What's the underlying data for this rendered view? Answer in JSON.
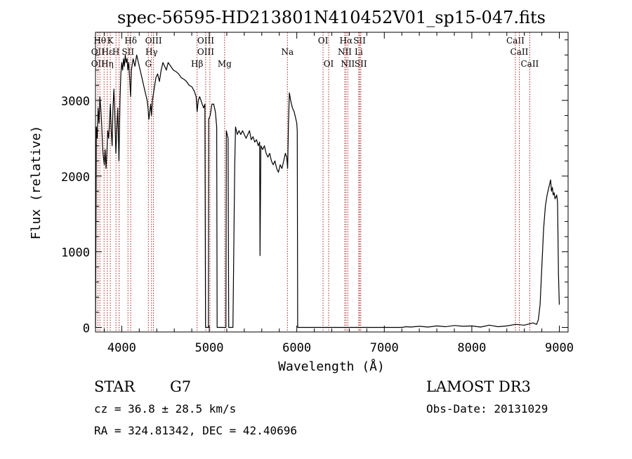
{
  "chart_data": {
    "type": "line",
    "title": "spec-56595-HD213801N410452V01_sp15-047.fits",
    "xlabel": "Wavelength (Å)",
    "ylabel": "Flux (relative)",
    "xlim": [
      3700,
      9100
    ],
    "ylim": [
      -60,
      3900
    ],
    "x_ticks": [
      4000,
      5000,
      6000,
      7000,
      8000,
      9000
    ],
    "y_ticks": [
      0,
      1000,
      2000,
      3000
    ],
    "grid": false,
    "series": [
      {
        "color": "#000000",
        "points": [
          [
            3700,
            0
          ],
          [
            3705,
            1200
          ],
          [
            3710,
            2650
          ],
          [
            3720,
            2500
          ],
          [
            3730,
            2900
          ],
          [
            3740,
            2700
          ],
          [
            3750,
            3050
          ],
          [
            3760,
            2900
          ],
          [
            3770,
            2700
          ],
          [
            3780,
            2400
          ],
          [
            3790,
            2250
          ],
          [
            3800,
            2150
          ],
          [
            3810,
            2350
          ],
          [
            3820,
            2100
          ],
          [
            3830,
            2300
          ],
          [
            3840,
            2600
          ],
          [
            3850,
            2500
          ],
          [
            3860,
            2700
          ],
          [
            3870,
            2950
          ],
          [
            3880,
            2600
          ],
          [
            3890,
            2400
          ],
          [
            3900,
            2900
          ],
          [
            3910,
            3150
          ],
          [
            3920,
            2850
          ],
          [
            3933,
            2300
          ],
          [
            3945,
            2650
          ],
          [
            3955,
            2900
          ],
          [
            3968,
            2200
          ],
          [
            3980,
            3000
          ],
          [
            3990,
            3350
          ],
          [
            4000,
            3500
          ],
          [
            4010,
            3400
          ],
          [
            4020,
            3550
          ],
          [
            4030,
            3450
          ],
          [
            4040,
            3600
          ],
          [
            4050,
            3500
          ],
          [
            4060,
            3550
          ],
          [
            4070,
            3400
          ],
          [
            4080,
            3500
          ],
          [
            4090,
            3300
          ],
          [
            4101,
            3050
          ],
          [
            4110,
            3400
          ],
          [
            4130,
            3550
          ],
          [
            4150,
            3450
          ],
          [
            4170,
            3600
          ],
          [
            4190,
            3500
          ],
          [
            4210,
            3400
          ],
          [
            4230,
            3300
          ],
          [
            4250,
            3200
          ],
          [
            4270,
            3100
          ],
          [
            4290,
            3000
          ],
          [
            4300,
            2900
          ],
          [
            4310,
            2750
          ],
          [
            4320,
            2850
          ],
          [
            4330,
            2950
          ],
          [
            4340,
            2800
          ],
          [
            4350,
            3000
          ],
          [
            4370,
            3150
          ],
          [
            4390,
            3300
          ],
          [
            4410,
            3350
          ],
          [
            4430,
            3250
          ],
          [
            4450,
            3400
          ],
          [
            4470,
            3500
          ],
          [
            4490,
            3450
          ],
          [
            4510,
            3400
          ],
          [
            4530,
            3500
          ],
          [
            4560,
            3450
          ],
          [
            4590,
            3400
          ],
          [
            4620,
            3380
          ],
          [
            4650,
            3350
          ],
          [
            4680,
            3300
          ],
          [
            4710,
            3280
          ],
          [
            4740,
            3250
          ],
          [
            4770,
            3200
          ],
          [
            4800,
            3180
          ],
          [
            4830,
            3120
          ],
          [
            4850,
            3050
          ],
          [
            4861,
            2850
          ],
          [
            4875,
            3000
          ],
          [
            4890,
            3050
          ],
          [
            4905,
            3000
          ],
          [
            4920,
            2950
          ],
          [
            4935,
            2900
          ],
          [
            4950,
            2950
          ],
          [
            4957,
            0
          ],
          [
            4990,
            0
          ],
          [
            4993,
            2750
          ],
          [
            5010,
            2800
          ],
          [
            5030,
            2950
          ],
          [
            5050,
            2950
          ],
          [
            5070,
            2850
          ],
          [
            5085,
            2650
          ],
          [
            5090,
            0
          ],
          [
            5190,
            0
          ],
          [
            5195,
            2600
          ],
          [
            5215,
            2500
          ],
          [
            5222,
            0
          ],
          [
            5270,
            0
          ],
          [
            5290,
            2100
          ],
          [
            5300,
            2650
          ],
          [
            5320,
            2550
          ],
          [
            5340,
            2600
          ],
          [
            5360,
            2550
          ],
          [
            5380,
            2600
          ],
          [
            5400,
            2550
          ],
          [
            5420,
            2500
          ],
          [
            5440,
            2550
          ],
          [
            5460,
            2600
          ],
          [
            5480,
            2480
          ],
          [
            5500,
            2520
          ],
          [
            5520,
            2450
          ],
          [
            5540,
            2480
          ],
          [
            5560,
            2400
          ],
          [
            5575,
            2450
          ],
          [
            5580,
            950
          ],
          [
            5590,
            2400
          ],
          [
            5610,
            2350
          ],
          [
            5630,
            2400
          ],
          [
            5650,
            2300
          ],
          [
            5670,
            2250
          ],
          [
            5690,
            2300
          ],
          [
            5710,
            2200
          ],
          [
            5730,
            2150
          ],
          [
            5750,
            2200
          ],
          [
            5770,
            2100
          ],
          [
            5790,
            2050
          ],
          [
            5810,
            2150
          ],
          [
            5830,
            2100
          ],
          [
            5850,
            2200
          ],
          [
            5870,
            2300
          ],
          [
            5885,
            2250
          ],
          [
            5895,
            2100
          ],
          [
            5905,
            2700
          ],
          [
            5915,
            3100
          ],
          [
            5930,
            3000
          ],
          [
            5950,
            2900
          ],
          [
            5970,
            2850
          ],
          [
            5990,
            2750
          ],
          [
            6000,
            2700
          ],
          [
            6005,
            2600
          ],
          [
            6010,
            0
          ],
          [
            6500,
            0
          ],
          [
            7000,
            0
          ],
          [
            7200,
            0
          ],
          [
            7250,
            10
          ],
          [
            7300,
            5
          ],
          [
            7400,
            15
          ],
          [
            7500,
            5
          ],
          [
            7600,
            20
          ],
          [
            7700,
            10
          ],
          [
            7800,
            25
          ],
          [
            7900,
            15
          ],
          [
            8000,
            20
          ],
          [
            8100,
            5
          ],
          [
            8200,
            30
          ],
          [
            8300,
            10
          ],
          [
            8400,
            20
          ],
          [
            8500,
            40
          ],
          [
            8600,
            30
          ],
          [
            8700,
            60
          ],
          [
            8740,
            40
          ],
          [
            8760,
            100
          ],
          [
            8780,
            300
          ],
          [
            8800,
            800
          ],
          [
            8820,
            1300
          ],
          [
            8840,
            1600
          ],
          [
            8860,
            1750
          ],
          [
            8880,
            1850
          ],
          [
            8900,
            1950
          ],
          [
            8910,
            1800
          ],
          [
            8920,
            1850
          ],
          [
            8930,
            1750
          ],
          [
            8940,
            1780
          ],
          [
            8950,
            1700
          ],
          [
            8960,
            1720
          ],
          [
            8970,
            1750
          ],
          [
            8980,
            1650
          ],
          [
            8990,
            700
          ],
          [
            9000,
            300
          ]
        ]
      }
    ],
    "lines": [
      {
        "wavelength": 3727,
        "labels": [
          {
            "text": "OII",
            "row": 2
          },
          {
            "text": "OII",
            "row": 3
          }
        ]
      },
      {
        "wavelength": 3750,
        "labels": [
          {
            "text": "Hθ",
            "row": 1
          }
        ]
      },
      {
        "wavelength": 3798,
        "labels": []
      },
      {
        "wavelength": 3835,
        "labels": [
          {
            "text": "Hε",
            "row": 2
          },
          {
            "text": "Hη",
            "row": 3
          }
        ]
      },
      {
        "wavelength": 3869,
        "labels": [
          {
            "text": "K",
            "row": 1
          }
        ]
      },
      {
        "wavelength": 3934,
        "labels": [
          {
            "text": "H",
            "row": 2
          }
        ]
      },
      {
        "wavelength": 3970,
        "labels": []
      },
      {
        "wavelength": 4071,
        "labels": [
          {
            "text": "SII",
            "row": 2
          }
        ]
      },
      {
        "wavelength": 4102,
        "labels": [
          {
            "text": "Hδ",
            "row": 1
          }
        ]
      },
      {
        "wavelength": 4304,
        "labels": [
          {
            "text": "G",
            "row": 3
          }
        ]
      },
      {
        "wavelength": 4340,
        "labels": [
          {
            "text": "Hγ",
            "row": 2
          }
        ]
      },
      {
        "wavelength": 4363,
        "labels": [
          {
            "text": "OIII",
            "row": 1
          }
        ]
      },
      {
        "wavelength": 4861,
        "labels": [
          {
            "text": "Hβ",
            "row": 3
          }
        ]
      },
      {
        "wavelength": 4959,
        "labels": [
          {
            "text": "OIII",
            "row": 1
          },
          {
            "text": "OIII",
            "row": 2
          }
        ]
      },
      {
        "wavelength": 5007,
        "labels": []
      },
      {
        "wavelength": 5175,
        "labels": [
          {
            "text": "Mg",
            "row": 3
          }
        ]
      },
      {
        "wavelength": 5893,
        "labels": [
          {
            "text": "Na",
            "row": 2
          }
        ]
      },
      {
        "wavelength": 6300,
        "labels": [
          {
            "text": "OI",
            "row": 1
          }
        ]
      },
      {
        "wavelength": 6364,
        "labels": [
          {
            "text": "OI",
            "row": 3
          }
        ]
      },
      {
        "wavelength": 6548,
        "labels": [
          {
            "text": "NII",
            "row": 2
          }
        ]
      },
      {
        "wavelength": 6563,
        "labels": [
          {
            "text": "Hα",
            "row": 1
          }
        ]
      },
      {
        "wavelength": 6583,
        "labels": [
          {
            "text": "NII",
            "row": 3
          }
        ]
      },
      {
        "wavelength": 6708,
        "labels": [
          {
            "text": "Li",
            "row": 2
          }
        ]
      },
      {
        "wavelength": 6717,
        "labels": [
          {
            "text": "SII",
            "row": 1
          }
        ]
      },
      {
        "wavelength": 6731,
        "labels": [
          {
            "text": "SII",
            "row": 3
          }
        ]
      },
      {
        "wavelength": 8498,
        "labels": [
          {
            "text": "CaII",
            "row": 1
          }
        ]
      },
      {
        "wavelength": 8542,
        "labels": [
          {
            "text": "CaII",
            "row": 2
          }
        ]
      },
      {
        "wavelength": 8662,
        "labels": [
          {
            "text": "CaII",
            "row": 3
          }
        ]
      }
    ],
    "line_color": "#b22222"
  },
  "info": {
    "object_class": "STAR",
    "subclass": "G7",
    "cz": "cz = 36.8 ± 28.5 km/s",
    "coords": "RA = 324.81342, DEC =  42.40696",
    "survey": "LAMOST DR3",
    "obs_date": "Obs-Date: 20131029"
  }
}
